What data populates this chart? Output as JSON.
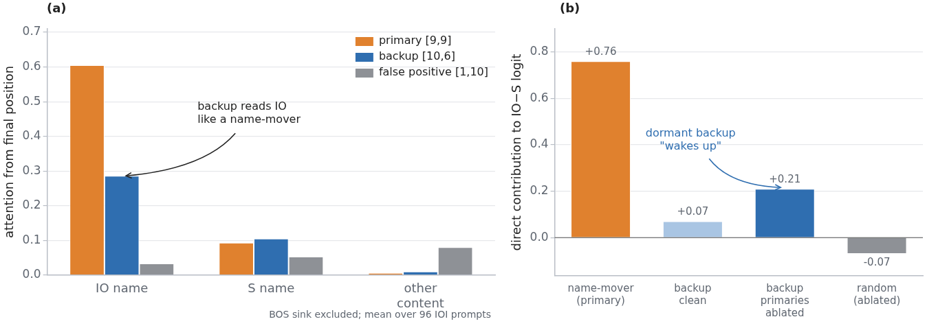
{
  "chart_data": [
    {
      "type": "bar",
      "title": "(a)",
      "ylabel": "attention from final position",
      "categories": [
        "IO name",
        "S name",
        "other\ncontent"
      ],
      "series": [
        {
          "name": "primary [9,9]",
          "color": "#e0812e",
          "values": [
            0.605,
            0.093,
            0.006
          ]
        },
        {
          "name": "backup [10,6]",
          "color": "#2f6eb0",
          "values": [
            0.286,
            0.105,
            0.01
          ]
        },
        {
          "name": "false positive [1,10]",
          "color": "#8e9196",
          "values": [
            0.033,
            0.053,
            0.08
          ]
        }
      ],
      "ylim": [
        0,
        0.71
      ],
      "yticks": [
        {
          "value": 0,
          "label": "0.0"
        },
        0.1,
        0.2,
        0.3,
        0.4,
        0.5,
        0.6,
        0.7
      ],
      "grid": "y",
      "legend": "top right",
      "annotations": [
        {
          "text": "backup reads IO\nlike a name-mover",
          "x": "IO name",
          "y": 0.286
        },
        "BOS sink excluded; mean over 96 IOI prompts"
      ]
    },
    {
      "type": "bar",
      "title": "(b)",
      "ylabel": "direct contribution to IO−S logit",
      "categories": [
        "name-mover\n(primary)",
        "backup\nclean",
        "backup\nprimaries\nablated",
        "random\n(ablated)"
      ],
      "values": [
        0.76,
        0.07,
        0.21,
        -0.07
      ],
      "colors": [
        "#e0812e",
        "#a9c5e3",
        "#2f6eb0",
        "#8e9196"
      ],
      "value_labels": [
        "+0.76",
        "+0.07",
        "+0.21",
        "-0.07"
      ],
      "ylim": [
        -0.165,
        0.9
      ],
      "yticks": [
        {
          "value": 0,
          "label": "0.0"
        },
        0.2,
        0.4,
        0.6,
        0.8
      ],
      "grid": "y",
      "ref_lines": [
        {
          "axis": "y",
          "value": 0,
          "color": "#555555"
        }
      ],
      "annotations": [
        {
          "text": "dormant backup\n\"wakes up\"",
          "x": "backup\nprimaries\nablated",
          "y": 0.21
        }
      ]
    }
  ]
}
